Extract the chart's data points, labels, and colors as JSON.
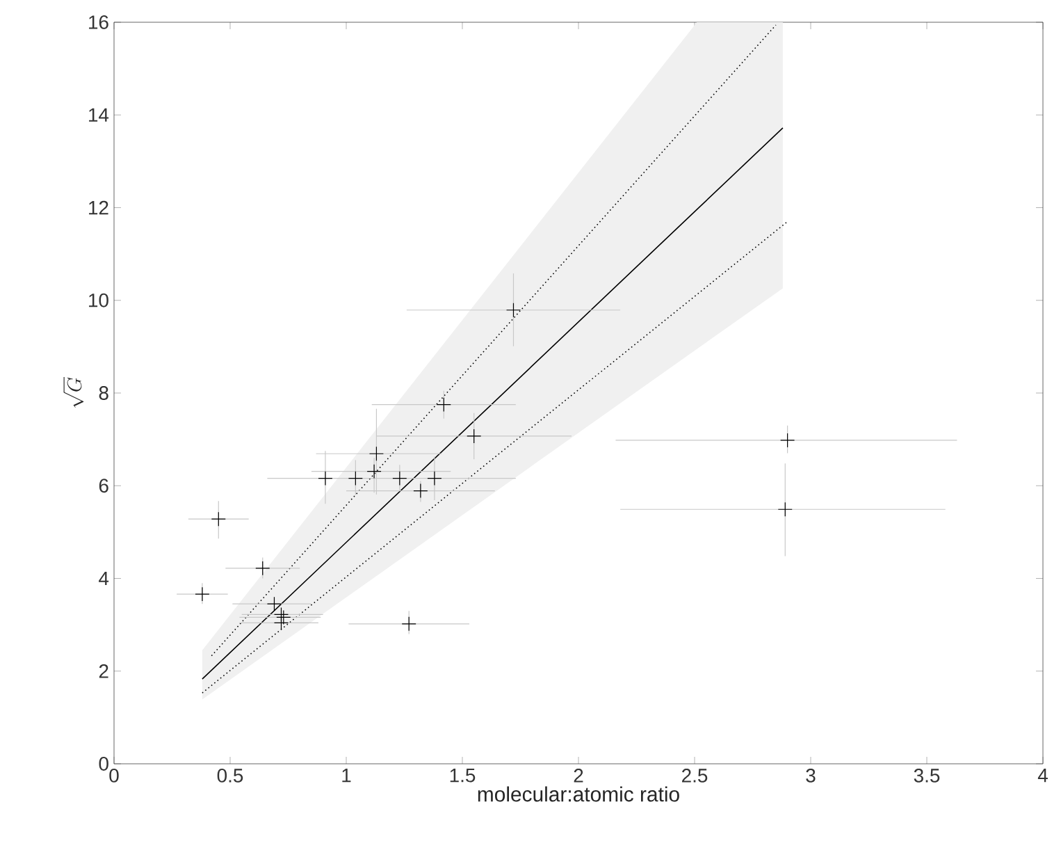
{
  "chart_data": {
    "type": "scatter",
    "xlabel": "molecular:atomic ratio",
    "ylabel": "\\sqrt{G}",
    "xlim": [
      0,
      4
    ],
    "ylim": [
      0,
      16
    ],
    "xticks": [
      0,
      0.5,
      1,
      1.5,
      2,
      2.5,
      3,
      3.5,
      4
    ],
    "yticks": [
      0,
      2,
      4,
      6,
      8,
      10,
      12,
      14,
      16
    ],
    "grid": false,
    "series": [
      {
        "type": "line",
        "color": "#000000",
        "marker": "none",
        "line_style": "solid",
        "x": [
          0.38,
          2.51,
          2.88
        ],
        "values": [
          1.83,
          11.96,
          13.72
        ],
        "lower": [
          1.39,
          8.95,
          10.26
        ],
        "upper": [
          2.45,
          16,
          16
        ]
      },
      {
        "type": "line",
        "color": "#000000",
        "marker": "none",
        "line_style": "dotted",
        "x": [
          0.42,
          2.85
        ],
        "values": [
          2.33,
          15.94
        ]
      },
      {
        "type": "line",
        "color": "#000000",
        "marker": "none",
        "line_style": "dotted",
        "x": [
          0.38,
          2.9
        ],
        "values": [
          1.53,
          11.7
        ]
      },
      {
        "color": "#000000",
        "marker": "cross",
        "x": [
          0.38,
          0.45,
          0.64,
          0.69,
          0.72,
          0.73,
          0.72,
          0.91,
          1.04,
          1.12,
          1.13,
          1.23,
          1.27,
          1.32,
          1.38,
          1.42,
          1.55,
          1.72,
          2.9,
          2.89
        ],
        "values": [
          3.66,
          5.28,
          4.22,
          3.45,
          3.22,
          3.16,
          3.04,
          6.16,
          6.16,
          6.31,
          6.69,
          6.16,
          3.02,
          5.89,
          6.16,
          7.75,
          7.07,
          9.79,
          6.98,
          5.49
        ],
        "xerrors": [
          [
            0.27,
            0.49
          ],
          [
            0.32,
            0.58
          ],
          [
            0.48,
            0.8
          ],
          [
            0.51,
            0.85
          ],
          [
            0.55,
            0.9
          ],
          [
            0.54,
            0.89
          ],
          [
            0.54,
            0.88
          ],
          [
            0.66,
            1.73
          ],
          null,
          [
            0.85,
            1.45
          ],
          [
            0.87,
            1.41
          ],
          null,
          [
            1.01,
            1.53
          ],
          [
            1.0,
            1.64
          ],
          null,
          [
            1.11,
            1.73
          ],
          [
            1.13,
            1.97
          ],
          [
            1.26,
            2.18
          ],
          [
            2.16,
            3.63
          ],
          [
            2.18,
            3.58
          ]
        ],
        "errors": [
          [
            3.45,
            3.9
          ],
          [
            4.86,
            5.67
          ],
          [
            4.0,
            4.45
          ],
          null,
          null,
          null,
          null,
          [
            5.61,
            6.75
          ],
          [
            5.8,
            6.55
          ],
          [
            5.85,
            6.6
          ],
          [
            5.81,
            7.66
          ],
          [
            5.9,
            6.45
          ],
          [
            2.8,
            3.3
          ],
          [
            5.65,
            6.1
          ],
          [
            5.69,
            6.63
          ],
          [
            7.45,
            8.05
          ],
          [
            6.57,
            7.57
          ],
          [
            9.01,
            10.58
          ],
          [
            6.7,
            7.3
          ],
          [
            4.48,
            6.48
          ]
        ]
      }
    ]
  }
}
